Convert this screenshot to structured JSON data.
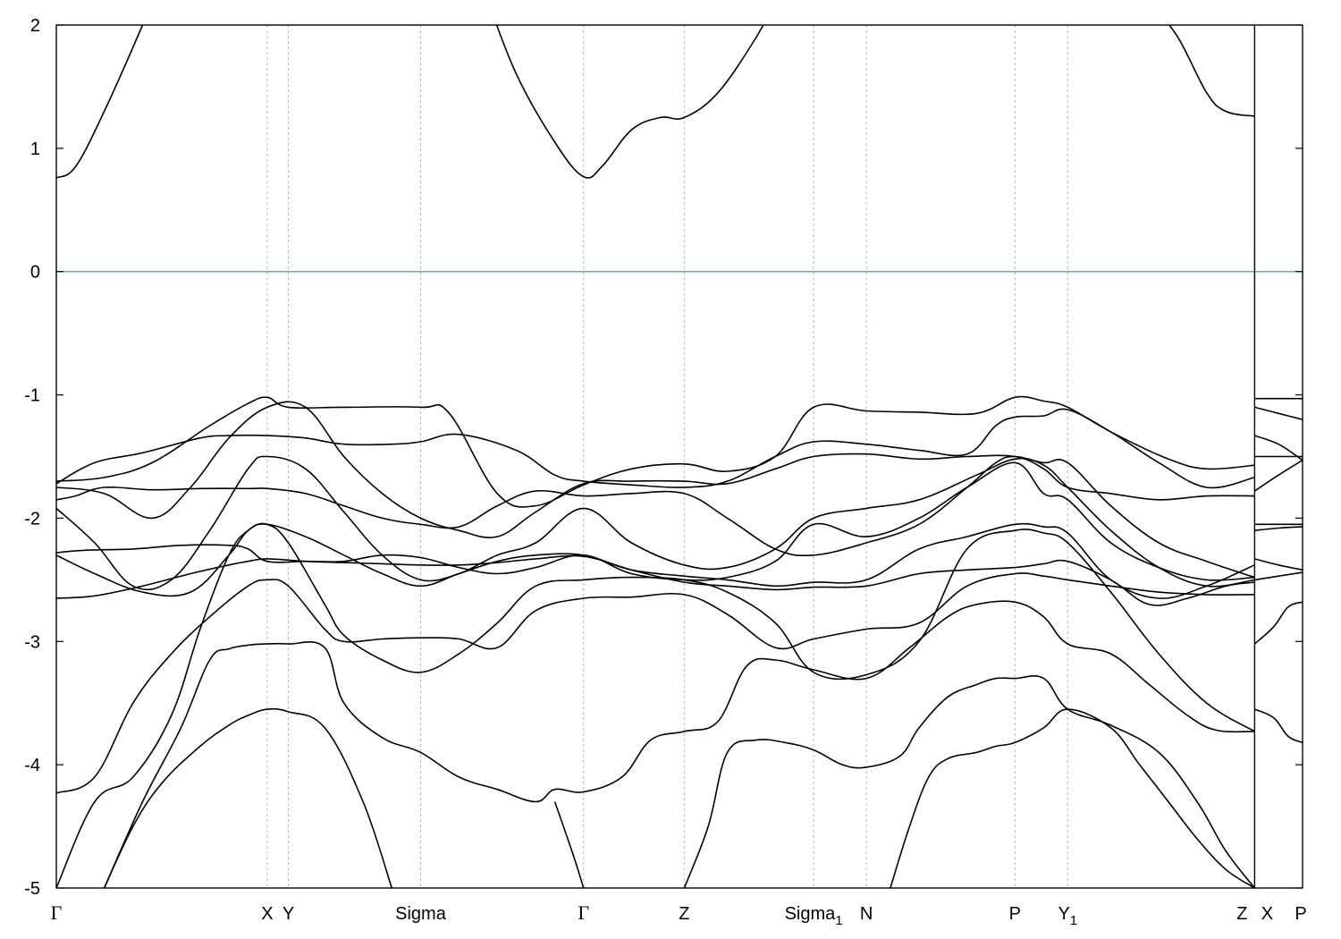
{
  "chart_data": {
    "type": "line",
    "title": "",
    "xlabel": "",
    "ylabel": "",
    "ylim": [
      -5,
      2
    ],
    "yticks": [
      2,
      1,
      0,
      -1,
      -2,
      -3,
      -4,
      -5
    ],
    "ytick_labels": [
      "2",
      "1",
      "0",
      "-1",
      "-2",
      "-3",
      "-4",
      "-5"
    ],
    "xlim": [
      0,
      13
    ],
    "high_symmetry_points": [
      {
        "x": 0.0,
        "label": "Γ",
        "sub": ""
      },
      {
        "x": 2.2,
        "label": "X",
        "sub": ""
      },
      {
        "x": 2.42,
        "label": "Y",
        "sub": ""
      },
      {
        "x": 3.8,
        "label": "Sigma",
        "sub": ""
      },
      {
        "x": 5.5,
        "label": "Γ",
        "sub": ""
      },
      {
        "x": 6.55,
        "label": "Z",
        "sub": ""
      },
      {
        "x": 7.9,
        "label": "Sigma",
        "sub": "1"
      },
      {
        "x": 8.45,
        "label": "N",
        "sub": ""
      },
      {
        "x": 10.0,
        "label": "P",
        "sub": ""
      },
      {
        "x": 10.55,
        "label": "Y",
        "sub": "1"
      },
      {
        "x": 12.5,
        "label": "Z",
        "sub": ""
      },
      {
        "x": 12.5,
        "label": "X",
        "sub": ""
      },
      {
        "x": 13.0,
        "label": "P",
        "sub": ""
      }
    ],
    "fermi_level": 0,
    "fermi_color": "#5ab4c8",
    "band_color": "#000000",
    "grid": "vertical dashed at high-symmetry points",
    "series": [
      {
        "x": [
          0,
          0.2,
          0.5,
          0.9,
          1.0
        ],
        "values": [
          0.76,
          0.85,
          1.3,
          2.0,
          2.2
        ]
      },
      {
        "x": [
          4.5,
          4.8,
          5.2,
          5.5,
          5.7,
          6.0,
          6.3,
          6.55,
          6.9,
          7.3,
          7.5
        ],
        "values": [
          2.2,
          1.6,
          1.05,
          0.77,
          0.86,
          1.15,
          1.25,
          1.25,
          1.45,
          1.9,
          2.2
        ]
      },
      {
        "x": [
          11.4,
          11.7,
          12.0,
          12.2,
          12.5
        ],
        "values": [
          2.2,
          1.9,
          1.45,
          1.3,
          1.26
        ]
      },
      {
        "x": [
          0,
          0.5,
          1.0,
          1.6,
          2.0,
          2.2,
          2.42,
          3.0,
          3.8,
          4.1,
          4.6,
          5.0,
          5.5,
          6.0,
          6.55,
          7.0,
          7.5,
          7.9,
          8.45,
          9.0,
          9.6,
          10.0,
          10.3,
          10.55,
          11.0,
          11.6,
          12.0,
          12.5
        ],
        "values": [
          -1.7,
          -1.67,
          -1.55,
          -1.25,
          -1.07,
          -1.02,
          -1.1,
          -1.1,
          -1.1,
          -1.15,
          -1.8,
          -1.9,
          -1.73,
          -1.6,
          -1.56,
          -1.62,
          -1.5,
          -1.1,
          -1.13,
          -1.14,
          -1.15,
          -1.02,
          -1.05,
          -1.1,
          -1.3,
          -1.52,
          -1.6,
          -1.57
        ]
      },
      {
        "x": [
          0,
          0.4,
          0.9,
          1.5,
          1.8,
          2.2,
          2.6,
          3.0,
          3.5,
          3.8,
          4.2,
          4.8,
          5.2,
          5.5,
          6.0,
          6.55,
          7.0,
          7.5,
          7.9,
          8.45,
          9.0,
          9.5,
          9.8,
          10.0,
          10.3,
          10.55,
          11.0,
          11.5,
          12.0,
          12.5
        ],
        "values": [
          -1.72,
          -1.55,
          -1.47,
          -1.35,
          -1.33,
          -1.33,
          -1.35,
          -1.4,
          -1.4,
          -1.38,
          -1.32,
          -1.45,
          -1.65,
          -1.7,
          -1.73,
          -1.75,
          -1.7,
          -1.5,
          -1.38,
          -1.4,
          -1.45,
          -1.48,
          -1.25,
          -1.18,
          -1.17,
          -1.12,
          -1.3,
          -1.55,
          -1.75,
          -1.67
        ]
      },
      {
        "x": [
          0,
          0.5,
          1.0,
          1.4,
          1.8,
          2.2,
          2.6,
          3.0,
          3.4,
          3.8,
          4.2,
          4.6,
          5.0,
          5.5,
          6.0,
          6.55,
          7.0,
          7.5,
          7.9,
          8.45,
          9.0,
          9.5,
          10.0,
          10.3,
          10.55,
          11.0,
          11.5,
          12.0,
          12.5
        ],
        "values": [
          -1.75,
          -1.8,
          -2.0,
          -1.75,
          -1.35,
          -1.1,
          -1.1,
          -1.5,
          -1.8,
          -2.0,
          -2.1,
          -2.15,
          -1.95,
          -1.72,
          -1.7,
          -1.7,
          -1.72,
          -1.6,
          -1.5,
          -1.48,
          -1.52,
          -1.5,
          -1.5,
          -1.6,
          -1.75,
          -1.8,
          -1.85,
          -1.82,
          -1.82
        ]
      },
      {
        "x": [
          0,
          0.2,
          0.5,
          1.0,
          1.5,
          2.0,
          2.2,
          2.6,
          3.0,
          3.4,
          3.8,
          4.2,
          4.6,
          5.0,
          5.5,
          6.0,
          6.55,
          7.0,
          7.5,
          7.9,
          8.45,
          9.0,
          9.5,
          9.8,
          10.0,
          10.3,
          10.55,
          11.0,
          11.5,
          12.0,
          12.5
        ],
        "values": [
          -1.85,
          -1.82,
          -1.75,
          -1.77,
          -1.76,
          -1.76,
          -1.76,
          -1.8,
          -1.9,
          -2.0,
          -2.05,
          -2.07,
          -1.9,
          -1.78,
          -1.82,
          -1.8,
          -1.8,
          -2.0,
          -2.25,
          -2.3,
          -2.2,
          -2.05,
          -1.75,
          -1.55,
          -1.5,
          -1.55,
          -1.55,
          -1.9,
          -2.2,
          -2.35,
          -2.48
        ]
      },
      {
        "x": [
          0,
          0.4,
          0.8,
          1.2,
          1.6,
          2.0,
          2.2,
          2.6,
          3.0,
          3.4,
          3.8,
          4.2,
          4.6,
          5.0,
          5.5,
          6.0,
          6.55,
          7.0,
          7.5,
          7.9,
          8.45,
          9.0,
          9.6,
          10.0,
          10.3,
          10.55,
          11.0,
          11.5,
          12.0,
          12.5
        ],
        "values": [
          -1.92,
          -2.2,
          -2.55,
          -2.5,
          -2.1,
          -1.6,
          -1.5,
          -1.6,
          -1.95,
          -2.3,
          -2.5,
          -2.45,
          -2.3,
          -2.2,
          -1.92,
          -2.2,
          -2.38,
          -2.4,
          -2.25,
          -2.0,
          -1.92,
          -1.85,
          -1.65,
          -1.52,
          -1.57,
          -1.75,
          -2.1,
          -2.4,
          -2.55,
          -2.5
        ]
      },
      {
        "x": [
          0,
          0.3,
          0.8,
          1.3,
          1.8,
          2.0,
          2.2,
          2.6,
          3.0,
          3.4,
          3.8,
          4.2,
          4.6,
          5.0,
          5.5,
          6.0,
          6.55,
          7.0,
          7.5,
          7.9,
          8.45,
          9.0,
          9.5,
          10.0,
          10.3,
          10.55,
          11.0,
          11.5,
          12.0,
          12.5
        ],
        "values": [
          -2.28,
          -2.26,
          -2.25,
          -2.22,
          -2.22,
          -2.25,
          -2.35,
          -2.35,
          -2.35,
          -2.3,
          -2.32,
          -2.4,
          -2.45,
          -2.4,
          -2.3,
          -2.45,
          -2.5,
          -2.48,
          -2.35,
          -2.05,
          -2.15,
          -2.0,
          -1.75,
          -1.55,
          -1.8,
          -1.85,
          -2.2,
          -2.4,
          -2.5,
          -2.48
        ]
      },
      {
        "x": [
          0,
          0.4,
          0.9,
          1.4,
          1.8,
          2.0,
          2.2,
          2.6,
          3.0,
          3.4,
          3.8,
          4.2,
          4.6,
          5.0,
          5.5,
          6.0,
          6.55,
          7.0,
          7.5,
          7.9,
          8.45,
          9.0,
          9.5,
          10.0,
          10.3,
          10.55,
          11.0,
          11.5,
          12.0,
          12.5
        ],
        "values": [
          -2.3,
          -2.45,
          -2.6,
          -2.6,
          -2.3,
          -2.1,
          -2.05,
          -2.15,
          -2.3,
          -2.45,
          -2.55,
          -2.45,
          -2.35,
          -2.3,
          -2.3,
          -2.42,
          -2.47,
          -2.5,
          -2.55,
          -2.52,
          -2.5,
          -2.25,
          -2.15,
          -2.05,
          -2.07,
          -2.12,
          -2.5,
          -2.65,
          -2.55,
          -2.38
        ]
      },
      {
        "x": [
          0,
          0.4,
          0.9,
          1.4,
          1.8,
          2.0,
          2.2,
          2.6,
          3.0,
          3.4,
          3.8,
          4.2,
          4.6,
          5.0,
          5.5,
          6.0,
          6.55,
          7.0,
          7.5,
          7.9,
          8.45,
          9.0,
          9.5,
          10.0,
          10.3,
          10.55,
          11.0,
          11.4,
          11.8,
          12.2,
          12.5
        ],
        "values": [
          -2.65,
          -2.63,
          -2.55,
          -2.45,
          -2.38,
          -2.35,
          -2.33,
          -2.35,
          -2.36,
          -2.37,
          -2.38,
          -2.38,
          -2.36,
          -2.33,
          -2.31,
          -2.42,
          -2.52,
          -2.55,
          -2.58,
          -2.56,
          -2.55,
          -2.45,
          -2.42,
          -2.4,
          -2.37,
          -2.35,
          -2.5,
          -2.7,
          -2.65,
          -2.55,
          -2.52
        ]
      },
      {
        "x": [
          0,
          0.4,
          0.8,
          1.2,
          1.6,
          2.0,
          2.2,
          2.42,
          2.8,
          3.0,
          3.4,
          3.8,
          4.2,
          4.6,
          5.0,
          5.5,
          6.0,
          6.55,
          7.0,
          7.5,
          7.9,
          8.45,
          9.0,
          9.5,
          10.0,
          10.3,
          10.55,
          11.0,
          11.5,
          12.0,
          12.5
        ],
        "values": [
          -4.23,
          -4.1,
          -3.5,
          -3.1,
          -2.8,
          -2.55,
          -2.5,
          -2.55,
          -2.9,
          -3.0,
          -2.98,
          -2.97,
          -2.98,
          -3.05,
          -2.75,
          -2.65,
          -2.64,
          -2.62,
          -2.78,
          -3.05,
          -2.98,
          -2.9,
          -2.85,
          -2.55,
          -2.45,
          -2.47,
          -2.5,
          -2.55,
          -2.6,
          -2.62,
          -2.62
        ]
      },
      {
        "x": [
          0,
          0.4,
          0.8,
          1.2,
          1.5,
          1.8,
          2.0,
          2.2,
          2.42,
          2.8,
          3.0,
          3.4,
          3.8,
          4.2,
          4.6,
          5.0,
          5.5,
          6.0,
          6.55,
          7.0,
          7.5,
          7.9,
          8.45,
          9.0,
          9.5,
          10.0,
          10.3,
          10.55,
          11.0,
          11.5,
          12.0,
          12.5
        ],
        "values": [
          -5.0,
          -4.3,
          -4.1,
          -3.6,
          -2.9,
          -2.3,
          -2.1,
          -2.05,
          -2.2,
          -2.7,
          -2.95,
          -3.15,
          -3.25,
          -3.1,
          -2.85,
          -2.55,
          -2.5,
          -2.48,
          -2.5,
          -2.6,
          -2.85,
          -3.25,
          -3.27,
          -3.0,
          -2.25,
          -2.1,
          -2.12,
          -2.2,
          -2.6,
          -3.1,
          -3.5,
          -3.73
        ]
      },
      {
        "x": [
          0.5,
          0.9,
          1.3,
          1.6,
          1.8,
          2.0,
          2.2,
          2.42,
          2.8,
          3.0,
          3.4,
          3.8,
          4.2,
          4.6,
          5.0,
          5.2,
          5.5,
          5.9,
          6.2,
          6.55,
          6.9,
          7.2,
          7.5,
          7.9,
          8.45,
          8.9,
          9.3,
          9.6,
          10.0,
          10.3,
          10.55,
          11.0,
          11.4,
          11.8,
          12.1,
          12.5
        ],
        "values": [
          -5.0,
          -4.3,
          -3.7,
          -3.15,
          -3.06,
          -3.03,
          -3.02,
          -3.02,
          -3.05,
          -3.5,
          -3.78,
          -3.9,
          -4.1,
          -4.2,
          -4.3,
          -4.2,
          -4.22,
          -4.1,
          -3.8,
          -3.73,
          -3.65,
          -3.2,
          -3.15,
          -3.23,
          -3.3,
          -3.05,
          -2.8,
          -2.7,
          -2.68,
          -2.8,
          -3.02,
          -3.1,
          -3.35,
          -3.6,
          -3.72,
          -3.73
        ]
      },
      {
        "x": [
          0.5,
          0.8,
          1.1,
          1.5,
          1.8,
          2.0,
          2.2,
          2.42,
          2.8,
          3.2,
          3.5
        ],
        "values": [
          -5.0,
          -4.5,
          -4.15,
          -3.85,
          -3.68,
          -3.6,
          -3.55,
          -3.57,
          -3.7,
          -4.3,
          -5.0
        ]
      },
      {
        "x": [
          5.2,
          5.4,
          5.5
        ],
        "values": [
          -4.3,
          -4.75,
          -5.0
        ]
      },
      {
        "x": [
          6.55,
          6.8,
          7.0,
          7.3,
          7.6,
          7.9,
          8.2,
          8.45,
          8.8,
          9.0,
          9.3,
          9.6,
          9.8,
          10.0,
          10.3,
          10.55,
          11.0,
          11.5,
          11.9,
          12.2,
          12.5
        ],
        "values": [
          -5.0,
          -4.5,
          -3.9,
          -3.8,
          -3.82,
          -3.88,
          -4.0,
          -4.02,
          -3.93,
          -3.7,
          -3.45,
          -3.35,
          -3.3,
          -3.3,
          -3.3,
          -3.55,
          -3.68,
          -3.9,
          -4.3,
          -4.7,
          -5.0
        ]
      },
      {
        "x": [
          8.7,
          8.9,
          9.1,
          9.3,
          9.6,
          9.8,
          10.0,
          10.3,
          10.55,
          11.0,
          11.3,
          11.6,
          11.9,
          12.2,
          12.5
        ],
        "values": [
          -5.0,
          -4.5,
          -4.1,
          -3.95,
          -3.9,
          -3.85,
          -3.82,
          -3.7,
          -3.55,
          -3.7,
          -4.0,
          -4.3,
          -4.6,
          -4.85,
          -5.0
        ]
      },
      {
        "x": [
          12.5,
          13.0
        ],
        "values": [
          -1.03,
          -1.03
        ]
      },
      {
        "x": [
          12.5,
          12.75,
          13.0
        ],
        "values": [
          -1.1,
          -1.15,
          -1.2
        ]
      },
      {
        "x": [
          12.5,
          12.75,
          13.0
        ],
        "values": [
          -1.33,
          -1.4,
          -1.53
        ]
      },
      {
        "x": [
          12.5,
          13.0
        ],
        "values": [
          -1.5,
          -1.5
        ]
      },
      {
        "x": [
          12.5,
          12.75,
          13.0
        ],
        "values": [
          -1.78,
          -1.65,
          -1.53
        ]
      },
      {
        "x": [
          12.5,
          13.0
        ],
        "values": [
          -2.05,
          -2.05
        ]
      },
      {
        "x": [
          12.5,
          12.75,
          13.0
        ],
        "values": [
          -2.1,
          -2.08,
          -2.07
        ]
      },
      {
        "x": [
          12.5,
          12.75,
          13.0
        ],
        "values": [
          -2.33,
          -2.38,
          -2.42
        ]
      },
      {
        "x": [
          12.5,
          12.75,
          13.0
        ],
        "values": [
          -2.5,
          -2.47,
          -2.44
        ]
      },
      {
        "x": [
          12.5,
          12.7,
          12.85,
          13.0
        ],
        "values": [
          -3.02,
          -2.88,
          -2.72,
          -2.68
        ]
      },
      {
        "x": [
          12.5,
          12.7,
          12.85,
          13.0
        ],
        "values": [
          -3.55,
          -3.62,
          -3.77,
          -3.82
        ]
      }
    ]
  }
}
